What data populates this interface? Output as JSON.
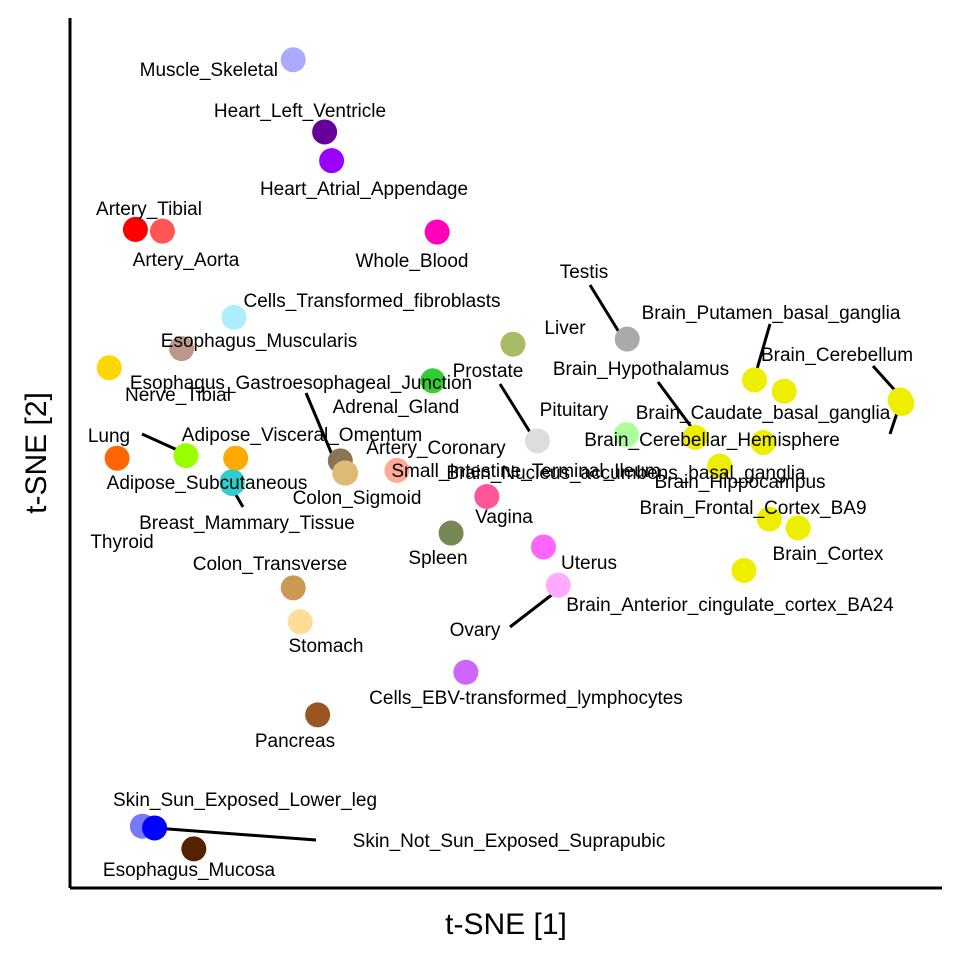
{
  "chart_data": {
    "type": "scatter",
    "title": "",
    "xlabel": "t-SNE [1]",
    "ylabel": "t-SNE [2]",
    "xlim": [
      0,
      100
    ],
    "ylim": [
      0,
      100
    ],
    "grid": false,
    "legend": "none",
    "points": [
      {
        "label": "Muscle_Skeletal",
        "x": 25.6,
        "y": 95.2,
        "color": "#aaaaff"
      },
      {
        "label": "Heart_Left_Ventricle",
        "x": 29.2,
        "y": 86.9,
        "color": "#660099"
      },
      {
        "label": "Heart_Atrial_Appendage",
        "x": 30.0,
        "y": 83.6,
        "color": "#9900ff"
      },
      {
        "label": "Artery_Tibial",
        "x": 7.5,
        "y": 75.7,
        "color": "#ff0000"
      },
      {
        "label": "Artery_Aorta",
        "x": 10.6,
        "y": 75.5,
        "color": "#ff5555"
      },
      {
        "label": "Whole_Blood",
        "x": 42.1,
        "y": 75.4,
        "color": "#ff00bb"
      },
      {
        "label": "Cells_Transformed_fibroblasts",
        "x": 18.8,
        "y": 65.6,
        "color": "#aaeeff"
      },
      {
        "label": "Esophagus_Muscularis",
        "x": 12.8,
        "y": 62.0,
        "color": "#bb9988"
      },
      {
        "label": "Nerve_Tibial",
        "x": 4.5,
        "y": 59.8,
        "color": "#ffd700"
      },
      {
        "label": "Esophagus_Gastroesophageal_Junction",
        "x": 31.0,
        "y": 49.1,
        "color": "#8b7355"
      },
      {
        "label": "Adrenal_Gland",
        "x": 41.6,
        "y": 58.3,
        "color": "#33cc33"
      },
      {
        "label": "Liver",
        "x": 50.8,
        "y": 62.5,
        "color": "#aabb66"
      },
      {
        "label": "Testis",
        "x": 63.9,
        "y": 63.1,
        "color": "#aaaaaa"
      },
      {
        "label": "Prostate",
        "x": 53.6,
        "y": 51.4,
        "color": "#dddddd"
      },
      {
        "label": "Pituitary",
        "x": 63.8,
        "y": 52.1,
        "color": "#aaff99"
      },
      {
        "label": "Lung",
        "x": 13.3,
        "y": 49.7,
        "color": "#99ff00"
      },
      {
        "label": "Adipose_Visceral_Omentum",
        "x": 19.0,
        "y": 49.4,
        "color": "#ffaa00"
      },
      {
        "label": "Thyroid",
        "x": 5.4,
        "y": 49.4,
        "color": "#ff6600"
      },
      {
        "label": "Adipose_Subcutaneous",
        "x": 18.6,
        "y": 46.5,
        "color": "#33cccc"
      },
      {
        "label": "Breast_Mammary_Tissue",
        "x": 18.6,
        "y": 46.7,
        "color": "#33cccc"
      },
      {
        "label": "Artery_Coronary",
        "x": 31.6,
        "y": 47.7,
        "color": "#ffaa55"
      },
      {
        "label": "Colon_Sigmoid",
        "x": 31.5,
        "y": 47.7,
        "color": "#ddbb77"
      },
      {
        "label": "Small_Intestine_Terminal_Ileum",
        "x": 37.5,
        "y": 48.0,
        "color": "#ffaa99"
      },
      {
        "label": "Vagina",
        "x": 47.8,
        "y": 45.0,
        "color": "#ff5599"
      },
      {
        "label": "Spleen",
        "x": 43.7,
        "y": 40.8,
        "color": "#778855"
      },
      {
        "label": "Uterus",
        "x": 54.3,
        "y": 39.2,
        "color": "#ff66ff"
      },
      {
        "label": "Colon_Transverse",
        "x": 25.6,
        "y": 34.5,
        "color": "#cc9955"
      },
      {
        "label": "Stomach",
        "x": 26.4,
        "y": 30.6,
        "color": "#ffdd99"
      },
      {
        "label": "Ovary",
        "x": 56.0,
        "y": 34.8,
        "color": "#ffaaff"
      },
      {
        "label": "Cells_EBV-transformed_lymphocytes",
        "x": 45.4,
        "y": 24.8,
        "color": "#cc66ff"
      },
      {
        "label": "Pancreas",
        "x": 28.4,
        "y": 19.9,
        "color": "#995522"
      },
      {
        "label": "Skin_Sun_Exposed_Lower_leg",
        "x": 8.3,
        "y": 7.1,
        "color": "#7777ff"
      },
      {
        "label": "Skin_Not_Sun_Exposed_Suprapubic",
        "x": 9.7,
        "y": 6.9,
        "color": "#0000ff"
      },
      {
        "label": "Esophagus_Mucosa",
        "x": 14.2,
        "y": 4.5,
        "color": "#552200"
      },
      {
        "label": "Brain_Putamen_basal_ganglia",
        "x": 78.5,
        "y": 58.4,
        "color": "#eeee00"
      },
      {
        "label": "Brain_Cerebellum",
        "x": 95.2,
        "y": 56.1,
        "color": "#eeee00"
      },
      {
        "label": "Brain_Hypothalamus",
        "x": 71.7,
        "y": 51.8,
        "color": "#eeee00"
      },
      {
        "label": "Brain_Caudate_basal_ganglia",
        "x": 81.9,
        "y": 57.1,
        "color": "#eeee00"
      },
      {
        "label": "Brain_Cerebellar_Hemisphere",
        "x": 95.4,
        "y": 55.7,
        "color": "#eeee00"
      },
      {
        "label": "Brain_Nucleus_accumbens_basal_ganglia",
        "x": 79.5,
        "y": 51.2,
        "color": "#eeee00"
      },
      {
        "label": "Brain_Hippocampus",
        "x": 74.5,
        "y": 48.5,
        "color": "#eeee00"
      },
      {
        "label": "Brain_Frontal_Cortex_BA9",
        "x": 80.2,
        "y": 42.4,
        "color": "#eeee00"
      },
      {
        "label": "Brain_Cortex",
        "x": 83.5,
        "y": 41.4,
        "color": "#eeee00"
      },
      {
        "label": "Brain_Anterior_cingulate_cortex_BA24",
        "x": 77.3,
        "y": 36.5,
        "color": "#eeee00"
      }
    ]
  }
}
